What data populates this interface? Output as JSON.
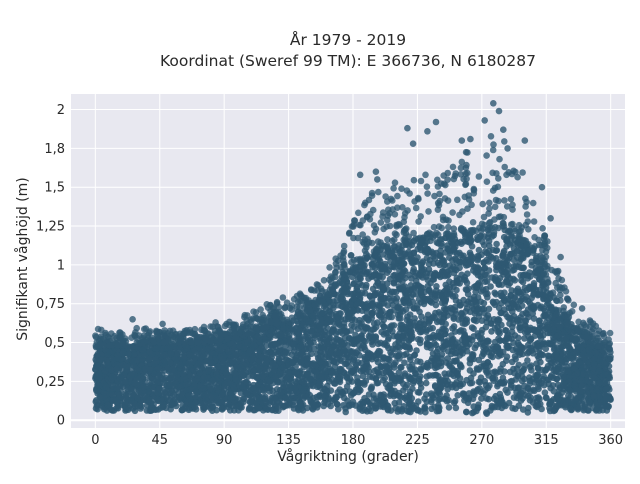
{
  "chart_data": {
    "type": "scatter",
    "title_lines": [
      "År 1979 - 2019",
      "Koordinat (Sweref 99 TM): E 366736, N 6180287"
    ],
    "xlabel": "Vågriktning (grader)",
    "ylabel": "Signifikant våghöjd (m)",
    "xlim": [
      -17,
      370
    ],
    "ylim": [
      -0.05,
      2.1
    ],
    "xticks": [
      0,
      45,
      90,
      135,
      180,
      225,
      270,
      315,
      360
    ],
    "xtick_labels": [
      "0",
      "45",
      "90",
      "135",
      "180",
      "225",
      "270",
      "315",
      "360"
    ],
    "yticks": [
      0,
      0.25,
      0.5,
      0.75,
      1,
      1.25,
      1.5,
      1.75,
      2
    ],
    "ytick_labels": [
      "0",
      "0,25",
      "0,5",
      "0,75",
      "1",
      "1,25",
      "1,5",
      "1,8",
      "2"
    ],
    "grid": true,
    "marker_color": "#2e5872",
    "plot_background": "#e8e8f0",
    "envelope": {
      "x": [
        0,
        10,
        20,
        30,
        45,
        60,
        75,
        90,
        105,
        120,
        135,
        150,
        160,
        170,
        180,
        190,
        200,
        210,
        225,
        240,
        255,
        270,
        280,
        290,
        300,
        310,
        320,
        330,
        340,
        350,
        360
      ],
      "lower": [
        0.06,
        0.06,
        0.06,
        0.06,
        0.06,
        0.06,
        0.06,
        0.06,
        0.06,
        0.06,
        0.06,
        0.06,
        0.06,
        0.05,
        0.05,
        0.05,
        0.05,
        0.05,
        0.05,
        0.05,
        0.05,
        0.04,
        0.04,
        0.05,
        0.05,
        0.05,
        0.05,
        0.06,
        0.06,
        0.06,
        0.06
      ],
      "upper": [
        0.48,
        0.48,
        0.48,
        0.49,
        0.5,
        0.5,
        0.5,
        0.52,
        0.55,
        0.6,
        0.65,
        0.7,
        0.78,
        0.88,
        0.97,
        1.05,
        1.1,
        1.12,
        1.14,
        1.16,
        1.2,
        1.22,
        1.24,
        1.22,
        1.15,
        1.0,
        0.8,
        0.65,
        0.55,
        0.48,
        0.46
      ],
      "outer": [
        0.6,
        0.56,
        0.58,
        0.6,
        0.58,
        0.58,
        0.6,
        0.62,
        0.7,
        0.75,
        0.8,
        0.84,
        0.95,
        1.08,
        1.3,
        1.45,
        1.5,
        1.55,
        1.6,
        1.65,
        1.72,
        1.8,
        1.86,
        1.76,
        1.58,
        1.35,
        1.05,
        0.82,
        0.68,
        0.62,
        0.56
      ]
    },
    "extreme_points": [
      {
        "x": 278,
        "y": 2.04
      },
      {
        "x": 282,
        "y": 1.99
      },
      {
        "x": 285,
        "y": 1.87
      },
      {
        "x": 238,
        "y": 1.92
      },
      {
        "x": 272,
        "y": 1.93
      },
      {
        "x": 218,
        "y": 1.88
      },
      {
        "x": 232,
        "y": 1.86
      },
      {
        "x": 262,
        "y": 1.81
      },
      {
        "x": 256,
        "y": 1.8
      },
      {
        "x": 300,
        "y": 1.8
      },
      {
        "x": 222,
        "y": 1.78
      },
      {
        "x": 288,
        "y": 1.75
      },
      {
        "x": 196,
        "y": 1.6
      },
      {
        "x": 185,
        "y": 1.58
      },
      {
        "x": 197,
        "y": 1.55
      },
      {
        "x": 26,
        "y": 0.65
      },
      {
        "x": 47,
        "y": 0.62
      },
      {
        "x": 84,
        "y": 0.63
      },
      {
        "x": 127,
        "y": 0.76
      },
      {
        "x": 131,
        "y": 0.79
      },
      {
        "x": 144,
        "y": 0.8
      },
      {
        "x": 165,
        "y": 0.86
      },
      {
        "x": 157,
        "y": 0.8
      },
      {
        "x": 347,
        "y": 0.57
      },
      {
        "x": 355,
        "y": 0.56
      },
      {
        "x": 340,
        "y": 0.72
      },
      {
        "x": 330,
        "y": 0.78
      },
      {
        "x": 318,
        "y": 1.3
      },
      {
        "x": 312,
        "y": 1.5
      },
      {
        "x": 325,
        "y": 1.05
      }
    ]
  }
}
